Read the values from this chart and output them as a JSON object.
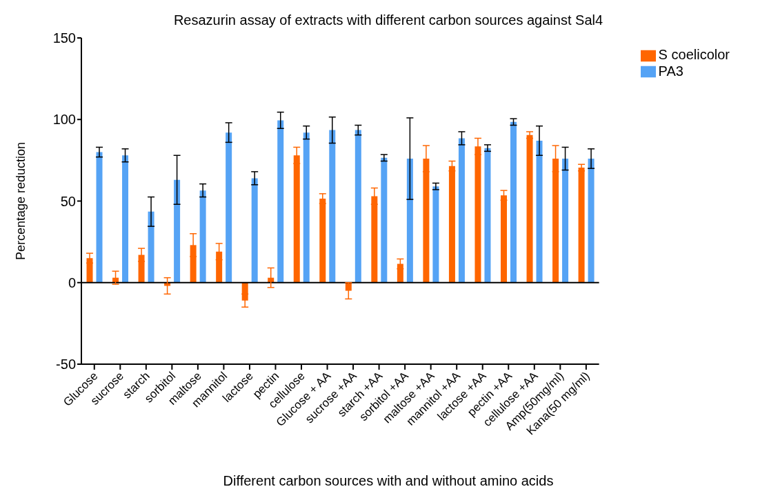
{
  "chart_data": {
    "type": "bar",
    "title": "Resazurin  assay of extracts with different carbon sources against Sal4",
    "xlabel": "Different carbon sources with and without amino acids",
    "ylabel": "Percentage reduction",
    "categories": [
      "Glucose",
      "sucrose",
      "starch",
      "sorbitol",
      "maltose",
      "mannitol",
      "lactose",
      "pectin",
      "cellulose",
      "Glucose + AA",
      "sucrose +AA",
      "starch +AA",
      "sorbitol +AA",
      "maltose +AA",
      "mannitol +AA",
      "lactose +AA",
      "pectin +AA",
      "cellulose +AA",
      "Amp(50mg/ml)",
      "Kana(50 mg/ml)"
    ],
    "series": [
      {
        "name": "S coelicolor",
        "color": "#ff6600",
        "values": [
          15,
          3,
          17,
          -2,
          23,
          19,
          -11,
          3,
          78,
          51.5,
          -5,
          53,
          11.5,
          76,
          71.5,
          83.5,
          53.5,
          90.5,
          76,
          70.5
        ],
        "errors": [
          3,
          4,
          4,
          5,
          7,
          5,
          4,
          6,
          5,
          3,
          5,
          5,
          3,
          8,
          3,
          5,
          3,
          2,
          8,
          2
        ]
      },
      {
        "name": "PA3",
        "color": "#55a3f5",
        "values": [
          80,
          78,
          43.5,
          63,
          56.5,
          92,
          64,
          99.5,
          92,
          93.5,
          93.5,
          76.5,
          76,
          59,
          88.5,
          82.5,
          98.5,
          87,
          76,
          76
        ],
        "errors": [
          3,
          4,
          9,
          15,
          4,
          6,
          4,
          5,
          4,
          8,
          3,
          2,
          25,
          2,
          4,
          2,
          2,
          9,
          7,
          6
        ]
      }
    ],
    "ylim": [
      -50,
      150
    ],
    "yticks": [
      -50,
      0,
      50,
      100,
      150
    ],
    "ref_lines": [
      {
        "axis": "y",
        "value": 0
      }
    ],
    "grid": false,
    "legend": "top right"
  }
}
